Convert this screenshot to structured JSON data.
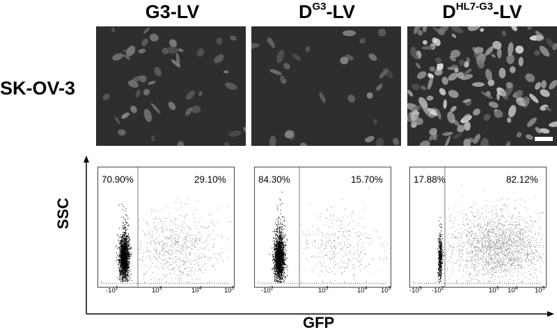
{
  "columns": [
    {
      "main": "G3-LV",
      "sup": "",
      "tail": ""
    },
    {
      "main": "D",
      "sup": "G3",
      "tail": "-LV"
    },
    {
      "main": "D",
      "sup": "HL7-G3",
      "tail": "-LV"
    }
  ],
  "row_label": "SK-OV-3",
  "facs_panels": [
    {
      "left_pct": "70.90%",
      "right_pct": "29.10%",
      "ticks": [
        "-10",
        "10",
        "10",
        "10"
      ],
      "tick_exps": [
        "2",
        "3",
        "4",
        "5"
      ]
    },
    {
      "left_pct": "84.30%",
      "right_pct": "15.70%",
      "ticks": [
        "-10",
        "10",
        "10",
        "10"
      ],
      "tick_exps": [
        "2",
        "3",
        "4",
        "5"
      ]
    },
    {
      "left_pct": "17.88%",
      "right_pct": "82.12%",
      "ticks": [
        "-10",
        "-10",
        "10",
        "10",
        "10"
      ],
      "tick_exps": [
        "3",
        "2",
        "3",
        "4",
        "5"
      ]
    }
  ],
  "y_axis_label": "SSC",
  "x_axis_label": "GFP",
  "colors": {
    "negative": "#000000",
    "positive": "#999999",
    "micro_bg": "#2e2e2e"
  }
}
